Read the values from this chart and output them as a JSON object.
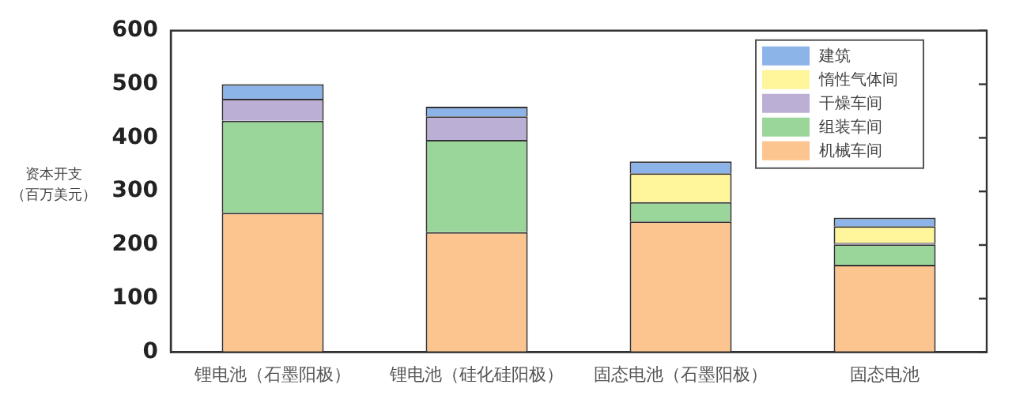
{
  "chart_data": {
    "type": "bar",
    "stacked": true,
    "ylabel": "资本开支（百万美元）",
    "categories": [
      "锂电池（石墨阳极）",
      "锂电池（硅化硅阳极）",
      "固态电池（石墨阳极）",
      "固态电池"
    ],
    "series": [
      {
        "name": "机械车间",
        "color": "#fcc58f",
        "values": [
          260,
          224,
          244,
          163
        ]
      },
      {
        "name": "组装车间",
        "color": "#9ad69a",
        "values": [
          172,
          172,
          36,
          38
        ]
      },
      {
        "name": "干燥车间",
        "color": "#bcafd6",
        "values": [
          41,
          44,
          0,
          3
        ]
      },
      {
        "name": "惰性气体间",
        "color": "#fff59a",
        "values": [
          0,
          0,
          54,
          31
        ]
      },
      {
        "name": "建筑",
        "color": "#8db4e8",
        "values": [
          27,
          18,
          22,
          16
        ]
      }
    ],
    "ylim": [
      0,
      600
    ],
    "yticks": [
      0,
      100,
      200,
      300,
      400,
      500,
      600
    ],
    "grid": false,
    "legend": "top right"
  }
}
